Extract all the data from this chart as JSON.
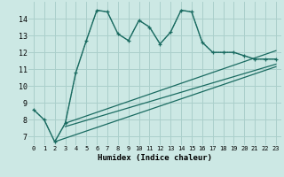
{
  "xlabel": "Humidex (Indice chaleur)",
  "background_color": "#cce8e4",
  "grid_color": "#aacfcb",
  "line_color": "#1a6b61",
  "xlim": [
    -0.5,
    23.5
  ],
  "ylim": [
    6.5,
    15.0
  ],
  "yticks": [
    7,
    8,
    9,
    10,
    11,
    12,
    13,
    14
  ],
  "xticks": [
    0,
    1,
    2,
    3,
    4,
    5,
    6,
    7,
    8,
    9,
    10,
    11,
    12,
    13,
    14,
    15,
    16,
    17,
    18,
    19,
    20,
    21,
    22,
    23
  ],
  "main_x": [
    0,
    1,
    2,
    3,
    4,
    5,
    6,
    7,
    8,
    9,
    10,
    11,
    12,
    13,
    14,
    15,
    16,
    17,
    18,
    19,
    20,
    21,
    22,
    23
  ],
  "main_y": [
    8.6,
    8.0,
    6.7,
    7.8,
    10.8,
    12.7,
    14.5,
    14.4,
    13.1,
    12.7,
    13.9,
    13.5,
    12.5,
    13.2,
    14.5,
    14.4,
    12.6,
    12.0,
    12.0,
    12.0,
    11.8,
    11.6,
    11.6,
    11.6
  ],
  "dotted_x": [
    0,
    1,
    2,
    3,
    4,
    5,
    6,
    7,
    8,
    9,
    10,
    11,
    12,
    13,
    14,
    15,
    16,
    17,
    18,
    19,
    20,
    21,
    22,
    23
  ],
  "dotted_y": [
    8.6,
    8.0,
    6.7,
    7.8,
    10.8,
    12.7,
    14.5,
    14.4,
    13.1,
    12.7,
    13.9,
    13.5,
    12.5,
    13.2,
    14.5,
    14.4,
    12.6,
    12.0,
    12.0,
    12.0,
    11.8,
    11.6,
    11.6,
    11.6
  ],
  "line1_x": [
    3,
    23
  ],
  "line1_y": [
    7.8,
    12.1
  ],
  "line2_x": [
    3,
    23
  ],
  "line2_y": [
    7.6,
    11.3
  ],
  "line3_x": [
    2,
    23
  ],
  "line3_y": [
    6.7,
    11.15
  ]
}
